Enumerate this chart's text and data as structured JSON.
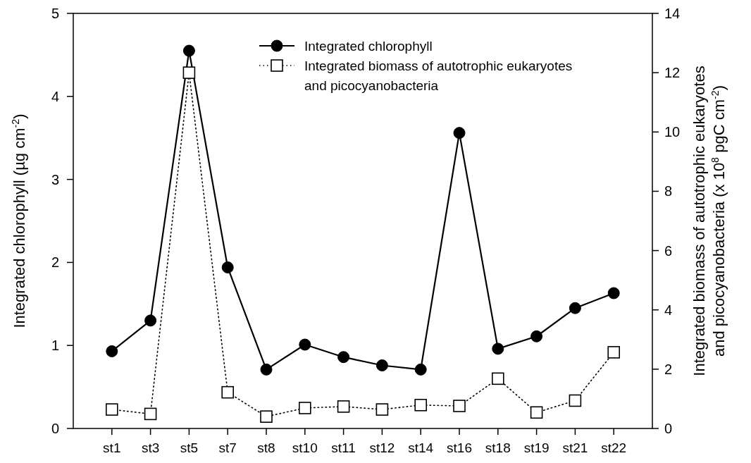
{
  "chart_data": {
    "type": "line",
    "categories": [
      "st1",
      "st3",
      "st5",
      "st7",
      "st8",
      "st10",
      "st11",
      "st12",
      "st14",
      "st16",
      "st18",
      "st19",
      "st21",
      "st22"
    ],
    "series": [
      {
        "name": "Integrated chlorophyll",
        "color": "#000000",
        "marker": "circle",
        "line_style": "solid",
        "values": [
          0.93,
          1.3,
          4.55,
          1.94,
          0.71,
          1.01,
          0.86,
          0.76,
          0.71,
          3.56,
          0.96,
          1.11,
          1.45,
          1.63
        ]
      },
      {
        "name": "Integrated biomass of autotrophic eukaryotes and picocyanobacteria",
        "color": "#000000",
        "marker": "square",
        "line_style": "dotted",
        "axis": "y2",
        "values": [
          0.64,
          0.49,
          12.0,
          1.22,
          0.4,
          0.69,
          0.74,
          0.64,
          0.79,
          0.76,
          1.68,
          0.54,
          0.94,
          2.57
        ]
      }
    ],
    "ylabel": "Integrated chlorophyll (µg cm$^{-2}$)",
    "y2label": "Integrated biomass of autotrophic eukaryotes and picocyanobacteria (x 10$^{8}$ pgC cm$^{-2}$)",
    "ylim": [
      0,
      5
    ],
    "yticks": [
      0,
      1,
      2,
      3,
      4,
      5
    ],
    "y2lim": [
      0,
      14
    ],
    "y2ticks": [
      0,
      2,
      4,
      6,
      8,
      10,
      12,
      14
    ],
    "legend": "top",
    "grid": false
  }
}
